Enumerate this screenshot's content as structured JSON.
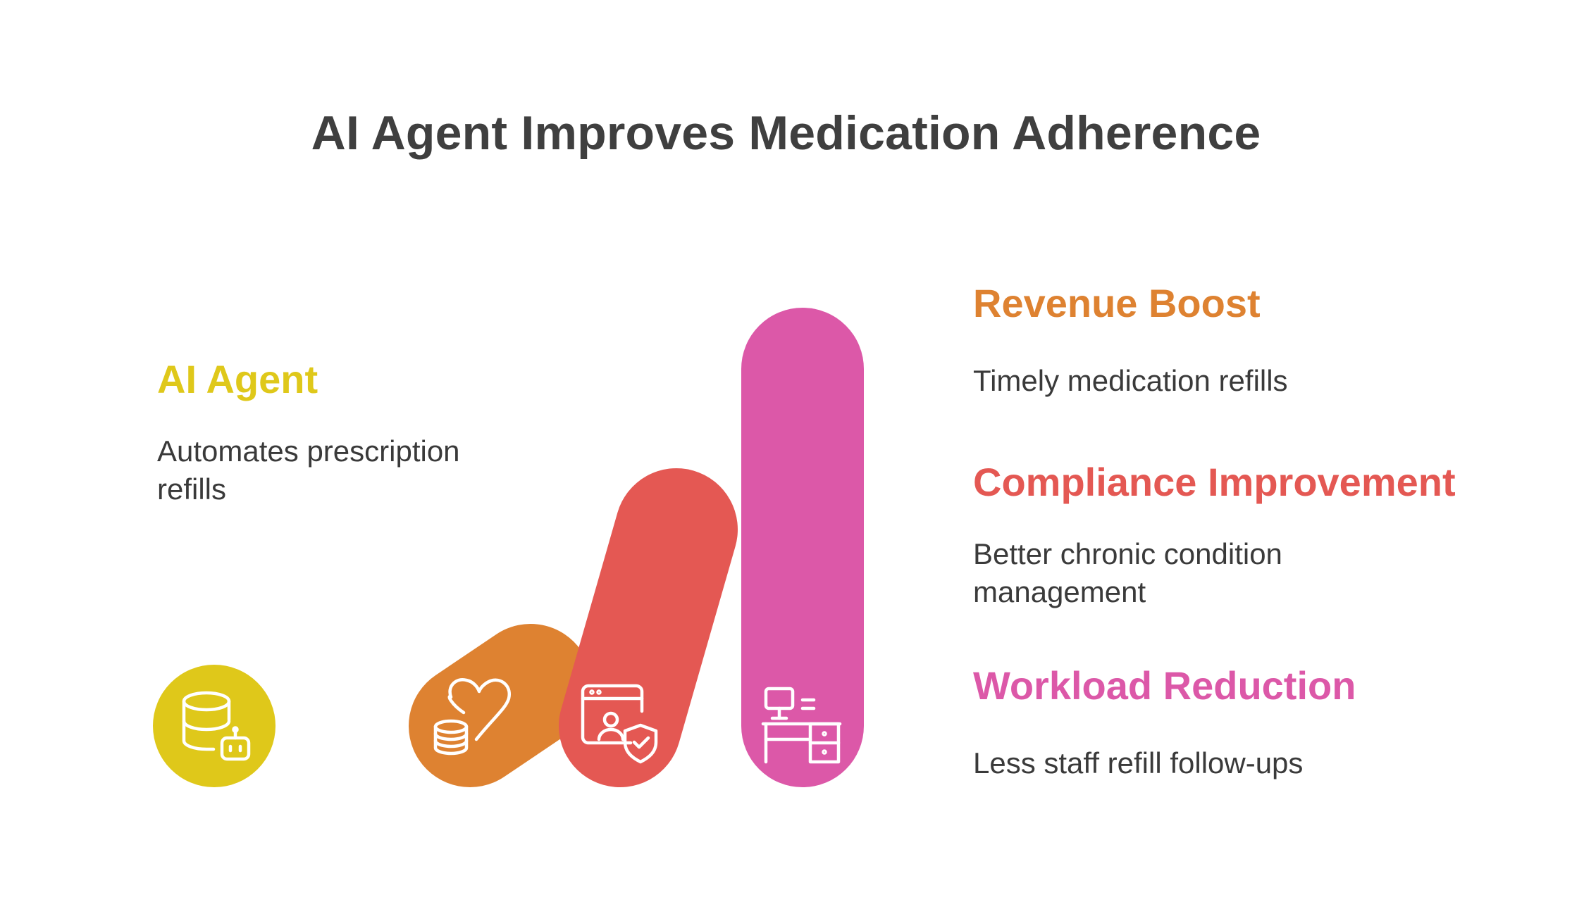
{
  "title": "AI Agent Improves Medication Adherence",
  "items": [
    {
      "label": "AI Agent",
      "description": "Automates prescription refills",
      "color": "#dfc81a",
      "icon": "database-robot-icon"
    },
    {
      "label": "Revenue Boost",
      "description": "Timely medication refills",
      "color": "#de8231",
      "icon": "heart-coins-icon"
    },
    {
      "label": "Compliance Improvement",
      "description": "Better chronic condition management",
      "color": "#e45853",
      "icon": "user-shield-window-icon"
    },
    {
      "label": "Workload Reduction",
      "description": "Less staff refill follow-ups",
      "color": "#dc58a8",
      "icon": "desk-computer-icon"
    }
  ]
}
